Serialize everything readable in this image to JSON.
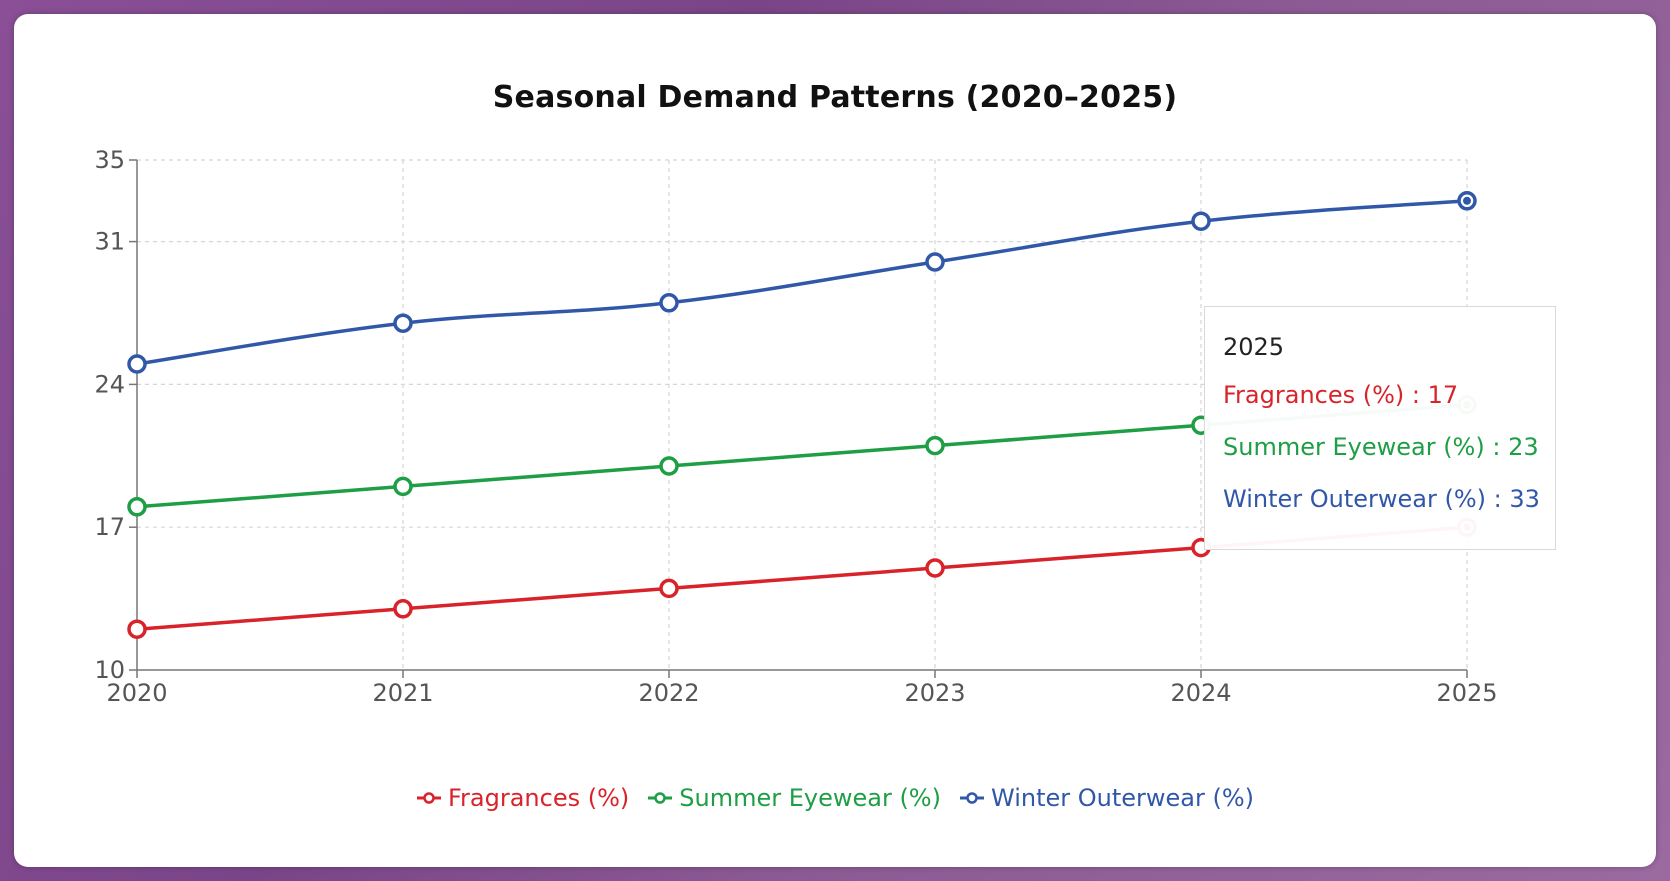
{
  "chart_data": {
    "type": "line",
    "title": "Seasonal Demand Patterns (2020–2025)",
    "x": [
      "2020",
      "2021",
      "2022",
      "2023",
      "2024",
      "2025"
    ],
    "ylim": [
      10,
      35
    ],
    "yticks": [
      10,
      17,
      24,
      31,
      35
    ],
    "grid": true,
    "legend_position": "bottom",
    "series": [
      {
        "name": "Fragrances (%)",
        "color": "#d8232a",
        "values": [
          12,
          13,
          14,
          15,
          16,
          17
        ]
      },
      {
        "name": "Summer Eyewear (%)",
        "color": "#1e9e45",
        "values": [
          18,
          19,
          20,
          21,
          22,
          23
        ]
      },
      {
        "name": "Winter Outerwear (%)",
        "color": "#3158a8",
        "values": [
          25,
          27,
          28,
          30,
          32,
          33
        ]
      }
    ],
    "tooltip": {
      "title": "2025",
      "rows": [
        "Fragrances (%) : 17",
        "Summer Eyewear (%) : 23",
        "Winter Outerwear (%) : 33"
      ]
    }
  }
}
